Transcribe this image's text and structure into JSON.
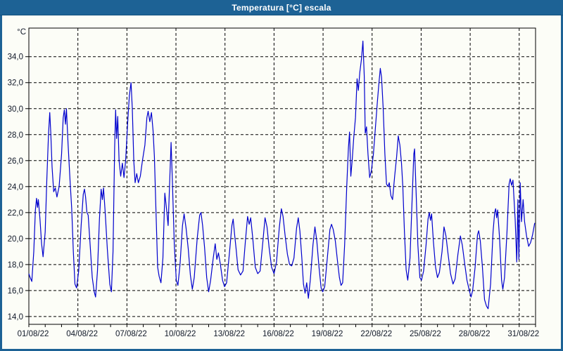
{
  "window": {
    "title": "Temperatura [°C] escala"
  },
  "colors": {
    "title_bar_bg": "#1d6295",
    "title_text": "#ffffff",
    "frame_border": "#1d6295",
    "content_bg": "#fcfdf7",
    "grid": "#000000",
    "axis": "#000000",
    "tick_label": "#101828",
    "line": "#0000cd"
  },
  "chart_data": {
    "type": "line",
    "title": "Temperatura [°C] escala",
    "xlabel": "",
    "ylabel": "°C",
    "y_unit_label": "°C",
    "grid": "dashed",
    "legend_position": "none",
    "ylim": [
      13.4,
      36.2
    ],
    "xlim_days": [
      1,
      32
    ],
    "y_ticks": [
      {
        "value": 14,
        "label": "14,0"
      },
      {
        "value": 16,
        "label": "16,0"
      },
      {
        "value": 18,
        "label": "18,0"
      },
      {
        "value": 20,
        "label": "20,0"
      },
      {
        "value": 22,
        "label": "22,0"
      },
      {
        "value": 24,
        "label": "24,0"
      },
      {
        "value": 26,
        "label": "26,0"
      },
      {
        "value": 28,
        "label": "28,0"
      },
      {
        "value": 30,
        "label": "30,0"
      },
      {
        "value": 32,
        "label": "32,0"
      },
      {
        "value": 34,
        "label": "34,0"
      }
    ],
    "x_ticks": [
      {
        "day": 1,
        "label": "01/08/22"
      },
      {
        "day": 4,
        "label": "04/08/22"
      },
      {
        "day": 7,
        "label": "07/08/22"
      },
      {
        "day": 10,
        "label": "10/08/22"
      },
      {
        "day": 13,
        "label": "13/08/22"
      },
      {
        "day": 16,
        "label": "16/08/22"
      },
      {
        "day": 19,
        "label": "19/08/22"
      },
      {
        "day": 22,
        "label": "22/08/22"
      },
      {
        "day": 25,
        "label": "25/08/22"
      },
      {
        "day": 28,
        "label": "28/08/22"
      },
      {
        "day": 31,
        "label": "31/08/22"
      }
    ],
    "x_minor_tick_days": [
      1,
      2,
      3,
      4,
      5,
      6,
      7,
      8,
      9,
      10,
      11,
      12,
      13,
      14,
      15,
      16,
      17,
      18,
      19,
      20,
      21,
      22,
      23,
      24,
      25,
      26,
      27,
      28,
      29,
      30,
      31,
      32
    ],
    "series": [
      {
        "name": "Temperatura",
        "color": "#0000cd",
        "points": [
          [
            1.0,
            17.3
          ],
          [
            1.08,
            17.0
          ],
          [
            1.18,
            16.7
          ],
          [
            1.3,
            19.0
          ],
          [
            1.4,
            22.2
          ],
          [
            1.47,
            23.1
          ],
          [
            1.53,
            22.4
          ],
          [
            1.58,
            23.0
          ],
          [
            1.68,
            21.5
          ],
          [
            1.78,
            19.6
          ],
          [
            1.87,
            18.6
          ],
          [
            2.0,
            20.5
          ],
          [
            2.1,
            24.5
          ],
          [
            2.2,
            28.0
          ],
          [
            2.28,
            29.7
          ],
          [
            2.34,
            28.2
          ],
          [
            2.42,
            25.5
          ],
          [
            2.52,
            23.6
          ],
          [
            2.62,
            23.9
          ],
          [
            2.72,
            23.2
          ],
          [
            2.85,
            24.0
          ],
          [
            3.0,
            26.5
          ],
          [
            3.1,
            29.3
          ],
          [
            3.17,
            29.9
          ],
          [
            3.24,
            28.8
          ],
          [
            3.3,
            30.0
          ],
          [
            3.4,
            27.3
          ],
          [
            3.52,
            24.5
          ],
          [
            3.62,
            22.3
          ],
          [
            3.72,
            19.0
          ],
          [
            3.82,
            16.5
          ],
          [
            3.92,
            16.2
          ],
          [
            4.05,
            17.5
          ],
          [
            4.2,
            21.0
          ],
          [
            4.33,
            23.4
          ],
          [
            4.4,
            23.8
          ],
          [
            4.47,
            23.2
          ],
          [
            4.55,
            22.0
          ],
          [
            4.63,
            21.8
          ],
          [
            4.75,
            19.5
          ],
          [
            4.88,
            17.0
          ],
          [
            5.0,
            15.9
          ],
          [
            5.08,
            15.5
          ],
          [
            5.2,
            17.5
          ],
          [
            5.32,
            21.5
          ],
          [
            5.42,
            23.8
          ],
          [
            5.5,
            23.0
          ],
          [
            5.57,
            23.9
          ],
          [
            5.67,
            22.0
          ],
          [
            5.8,
            19.2
          ],
          [
            5.95,
            16.5
          ],
          [
            6.05,
            15.9
          ],
          [
            6.15,
            19.0
          ],
          [
            6.25,
            27.0
          ],
          [
            6.31,
            29.9
          ],
          [
            6.37,
            27.7
          ],
          [
            6.44,
            29.4
          ],
          [
            6.52,
            26.0
          ],
          [
            6.62,
            24.8
          ],
          [
            6.72,
            25.8
          ],
          [
            6.82,
            24.7
          ],
          [
            6.92,
            26.0
          ],
          [
            7.05,
            29.0
          ],
          [
            7.15,
            31.0
          ],
          [
            7.25,
            32.0
          ],
          [
            7.33,
            30.0
          ],
          [
            7.42,
            26.0
          ],
          [
            7.5,
            24.3
          ],
          [
            7.6,
            25.0
          ],
          [
            7.7,
            24.3
          ],
          [
            7.82,
            24.8
          ],
          [
            7.95,
            26.0
          ],
          [
            8.1,
            27.2
          ],
          [
            8.22,
            29.3
          ],
          [
            8.3,
            29.8
          ],
          [
            8.4,
            29.0
          ],
          [
            8.5,
            29.7
          ],
          [
            8.6,
            28.3
          ],
          [
            8.68,
            26.3
          ],
          [
            8.78,
            22.0
          ],
          [
            8.88,
            17.8
          ],
          [
            8.97,
            17.1
          ],
          [
            9.08,
            16.6
          ],
          [
            9.2,
            18.5
          ],
          [
            9.32,
            23.5
          ],
          [
            9.42,
            22.3
          ],
          [
            9.52,
            21.0
          ],
          [
            9.62,
            24.5
          ],
          [
            9.7,
            27.4
          ],
          [
            9.78,
            24.5
          ],
          [
            9.9,
            19.5
          ],
          [
            10.02,
            16.8
          ],
          [
            10.12,
            16.4
          ],
          [
            10.25,
            18.0
          ],
          [
            10.4,
            21.0
          ],
          [
            10.5,
            21.9
          ],
          [
            10.62,
            20.8
          ],
          [
            10.75,
            19.2
          ],
          [
            10.88,
            17.2
          ],
          [
            11.0,
            16.1
          ],
          [
            11.12,
            17.0
          ],
          [
            11.3,
            20.0
          ],
          [
            11.45,
            21.8
          ],
          [
            11.53,
            22.0
          ],
          [
            11.63,
            21.0
          ],
          [
            11.75,
            19.3
          ],
          [
            11.88,
            17.0
          ],
          [
            12.0,
            15.9
          ],
          [
            12.12,
            16.8
          ],
          [
            12.28,
            18.5
          ],
          [
            12.4,
            19.6
          ],
          [
            12.5,
            18.4
          ],
          [
            12.6,
            18.9
          ],
          [
            12.72,
            18.0
          ],
          [
            12.85,
            16.8
          ],
          [
            12.97,
            16.3
          ],
          [
            13.1,
            16.6
          ],
          [
            13.28,
            19.0
          ],
          [
            13.42,
            21.0
          ],
          [
            13.5,
            21.5
          ],
          [
            13.58,
            20.4
          ],
          [
            13.68,
            19.2
          ],
          [
            13.8,
            17.6
          ],
          [
            13.95,
            17.2
          ],
          [
            14.1,
            17.5
          ],
          [
            14.25,
            19.8
          ],
          [
            14.38,
            21.7
          ],
          [
            14.48,
            21.1
          ],
          [
            14.57,
            21.6
          ],
          [
            14.7,
            20.0
          ],
          [
            14.85,
            17.8
          ],
          [
            15.0,
            17.3
          ],
          [
            15.15,
            17.5
          ],
          [
            15.32,
            19.8
          ],
          [
            15.45,
            21.6
          ],
          [
            15.57,
            20.9
          ],
          [
            15.7,
            19.3
          ],
          [
            15.85,
            17.8
          ],
          [
            16.0,
            17.3
          ],
          [
            16.15,
            18.2
          ],
          [
            16.32,
            20.8
          ],
          [
            16.45,
            22.3
          ],
          [
            16.55,
            21.7
          ],
          [
            16.68,
            20.2
          ],
          [
            16.82,
            18.8
          ],
          [
            16.95,
            18.0
          ],
          [
            17.08,
            17.9
          ],
          [
            17.22,
            18.5
          ],
          [
            17.38,
            20.8
          ],
          [
            17.48,
            21.6
          ],
          [
            17.58,
            20.6
          ],
          [
            17.7,
            18.5
          ],
          [
            17.8,
            16.5
          ],
          [
            17.9,
            15.8
          ],
          [
            18.0,
            16.6
          ],
          [
            18.1,
            15.4
          ],
          [
            18.22,
            16.8
          ],
          [
            18.38,
            19.5
          ],
          [
            18.5,
            20.9
          ],
          [
            18.62,
            19.8
          ],
          [
            18.75,
            17.8
          ],
          [
            18.88,
            16.2
          ],
          [
            18.98,
            15.9
          ],
          [
            19.1,
            16.3
          ],
          [
            19.28,
            18.8
          ],
          [
            19.42,
            20.7
          ],
          [
            19.52,
            21.1
          ],
          [
            19.62,
            20.7
          ],
          [
            19.75,
            19.8
          ],
          [
            19.88,
            18.3
          ],
          [
            20.0,
            17.0
          ],
          [
            20.1,
            16.4
          ],
          [
            20.2,
            16.6
          ],
          [
            20.32,
            19.5
          ],
          [
            20.45,
            24.0
          ],
          [
            20.55,
            27.0
          ],
          [
            20.62,
            28.2
          ],
          [
            20.7,
            24.8
          ],
          [
            20.78,
            26.0
          ],
          [
            20.88,
            27.8
          ],
          [
            20.98,
            29.3
          ],
          [
            21.08,
            32.3
          ],
          [
            21.16,
            31.4
          ],
          [
            21.25,
            32.8
          ],
          [
            21.35,
            33.8
          ],
          [
            21.44,
            35.2
          ],
          [
            21.52,
            32.5
          ],
          [
            21.58,
            28.1
          ],
          [
            21.66,
            28.6
          ],
          [
            21.75,
            26.5
          ],
          [
            21.85,
            24.7
          ],
          [
            21.95,
            25.2
          ],
          [
            22.08,
            26.5
          ],
          [
            22.2,
            28.5
          ],
          [
            22.32,
            30.5
          ],
          [
            22.42,
            32.0
          ],
          [
            22.5,
            33.1
          ],
          [
            22.58,
            32.4
          ],
          [
            22.68,
            30.0
          ],
          [
            22.78,
            26.5
          ],
          [
            22.88,
            24.2
          ],
          [
            22.97,
            24.0
          ],
          [
            23.05,
            24.3
          ],
          [
            23.15,
            23.3
          ],
          [
            23.25,
            23.0
          ],
          [
            23.38,
            24.8
          ],
          [
            23.5,
            26.3
          ],
          [
            23.6,
            27.9
          ],
          [
            23.7,
            27.2
          ],
          [
            23.8,
            25.8
          ],
          [
            23.88,
            24.0
          ],
          [
            23.98,
            20.5
          ],
          [
            24.08,
            17.6
          ],
          [
            24.18,
            16.8
          ],
          [
            24.32,
            18.5
          ],
          [
            24.45,
            23.0
          ],
          [
            24.55,
            26.5
          ],
          [
            24.6,
            26.9
          ],
          [
            24.68,
            24.0
          ],
          [
            24.8,
            19.5
          ],
          [
            24.92,
            17.0
          ],
          [
            25.02,
            16.8
          ],
          [
            25.15,
            17.5
          ],
          [
            25.3,
            19.5
          ],
          [
            25.42,
            21.5
          ],
          [
            25.5,
            22.0
          ],
          [
            25.57,
            21.4
          ],
          [
            25.64,
            21.9
          ],
          [
            25.75,
            19.8
          ],
          [
            25.88,
            17.8
          ],
          [
            26.0,
            17.0
          ],
          [
            26.12,
            17.4
          ],
          [
            26.28,
            19.0
          ],
          [
            26.4,
            20.9
          ],
          [
            26.52,
            20.2
          ],
          [
            26.65,
            18.8
          ],
          [
            26.8,
            17.3
          ],
          [
            26.95,
            16.5
          ],
          [
            27.08,
            16.9
          ],
          [
            27.25,
            18.8
          ],
          [
            27.4,
            20.2
          ],
          [
            27.52,
            19.5
          ],
          [
            27.65,
            18.2
          ],
          [
            27.8,
            16.8
          ],
          [
            27.95,
            16.0
          ],
          [
            28.05,
            15.5
          ],
          [
            28.15,
            16.0
          ],
          [
            28.3,
            17.8
          ],
          [
            28.45,
            20.3
          ],
          [
            28.52,
            20.6
          ],
          [
            28.62,
            19.8
          ],
          [
            28.75,
            17.8
          ],
          [
            28.88,
            15.3
          ],
          [
            29.0,
            14.8
          ],
          [
            29.1,
            14.6
          ],
          [
            29.25,
            16.5
          ],
          [
            29.4,
            20.5
          ],
          [
            29.5,
            22.0
          ],
          [
            29.56,
            22.3
          ],
          [
            29.62,
            21.6
          ],
          [
            29.68,
            22.2
          ],
          [
            29.8,
            20.0
          ],
          [
            29.92,
            16.8
          ],
          [
            30.0,
            16.1
          ],
          [
            30.1,
            17.0
          ],
          [
            30.25,
            20.5
          ],
          [
            30.38,
            24.2
          ],
          [
            30.45,
            24.6
          ],
          [
            30.53,
            24.1
          ],
          [
            30.62,
            24.5
          ],
          [
            30.75,
            21.5
          ],
          [
            30.85,
            18.2
          ],
          [
            30.92,
            23.0
          ],
          [
            30.98,
            18.4
          ],
          [
            31.06,
            24.3
          ],
          [
            31.14,
            21.3
          ],
          [
            31.24,
            23.0
          ],
          [
            31.33,
            21.3
          ],
          [
            31.45,
            20.2
          ],
          [
            31.58,
            19.4
          ],
          [
            31.7,
            19.7
          ],
          [
            31.82,
            20.3
          ],
          [
            31.95,
            21.2
          ]
        ]
      }
    ]
  }
}
